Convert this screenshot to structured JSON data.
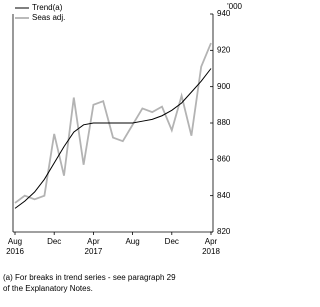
{
  "chart_data": {
    "type": "line",
    "unit_label": "'000",
    "categories": [
      "Aug",
      null,
      null,
      null,
      "Dec",
      null,
      null,
      null,
      "Apr",
      null,
      null,
      null,
      "Aug",
      null,
      null,
      null,
      "Dec",
      null,
      null,
      null,
      "Apr"
    ],
    "years": [
      "2016",
      null,
      null,
      null,
      null,
      null,
      null,
      null,
      "2017",
      null,
      null,
      null,
      null,
      null,
      null,
      null,
      null,
      null,
      null,
      null,
      "2018"
    ],
    "series": [
      {
        "name": "Trend(a)",
        "color": "#000000",
        "values": [
          833,
          837,
          842,
          849,
          858,
          867,
          875,
          879,
          880,
          880,
          880,
          880,
          880,
          881,
          882,
          884,
          887,
          891,
          897,
          903,
          910
        ]
      },
      {
        "name": "Seas adj.",
        "color": "#b3b3b3",
        "values": [
          836,
          840,
          838,
          840,
          874,
          851,
          894,
          857,
          890,
          892,
          872,
          870,
          879,
          888,
          886,
          889,
          876,
          895,
          873,
          911,
          924
        ]
      }
    ],
    "ylim": [
      820,
      940
    ],
    "yticks": [
      820,
      840,
      860,
      880,
      900,
      920,
      940
    ],
    "footnote": [
      "(a) For breaks in trend series - see paragraph 29",
      "of the Explanatory Notes."
    ]
  }
}
